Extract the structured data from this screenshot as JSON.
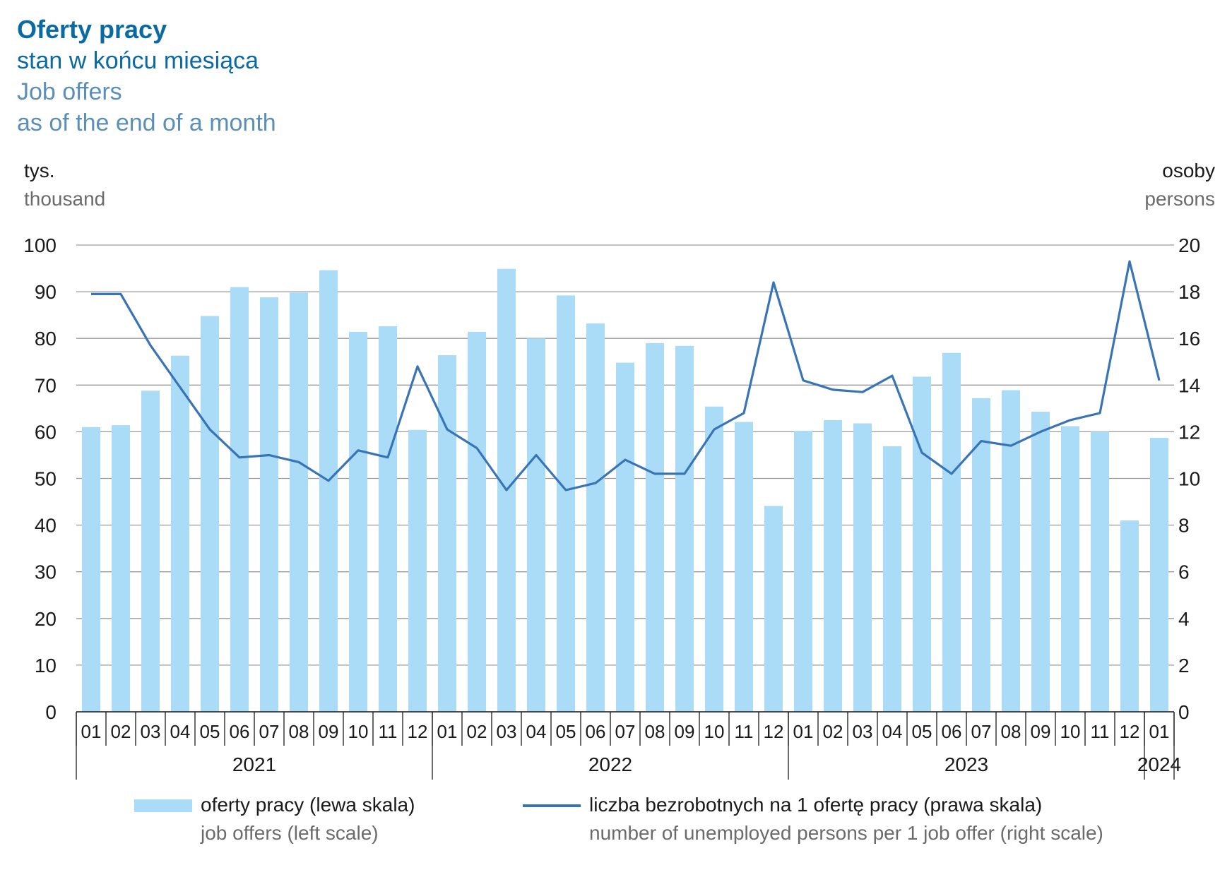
{
  "titles": {
    "main": "Oferty pracy",
    "sub": "stan w końcu miesiąca",
    "en1": "Job offers",
    "en2": "as of the end of a month"
  },
  "units": {
    "left_pl": "tys.",
    "left_en": "thousand",
    "right_pl": "osoby",
    "right_en": "persons"
  },
  "legend": {
    "bars_pl": "oferty pracy (lewa skala)",
    "bars_en": "job offers (left scale)",
    "line_pl": "liczba bezrobotnych na 1 ofertę pracy (prawa skala)",
    "line_en": "number of unemployed persons per 1 job offer (right scale)"
  },
  "chart_data": {
    "type": "bar",
    "categories": [
      "01",
      "02",
      "03",
      "04",
      "05",
      "06",
      "07",
      "08",
      "09",
      "10",
      "11",
      "12",
      "01",
      "02",
      "03",
      "04",
      "05",
      "06",
      "07",
      "08",
      "09",
      "10",
      "11",
      "12",
      "01",
      "02",
      "03",
      "04",
      "05",
      "06",
      "07",
      "08",
      "09",
      "10",
      "11",
      "12",
      "01"
    ],
    "years": [
      {
        "label": "2021",
        "start": 0,
        "end": 11
      },
      {
        "label": "2022",
        "start": 12,
        "end": 23
      },
      {
        "label": "2023",
        "start": 24,
        "end": 35
      },
      {
        "label": "2024",
        "start": 36,
        "end": 36
      }
    ],
    "series": [
      {
        "name": "oferty pracy (lewa skala)",
        "type": "bar",
        "axis": "left",
        "color": "#aadcf8",
        "values": [
          61.0,
          61.4,
          68.8,
          76.3,
          84.8,
          91.0,
          88.8,
          89.8,
          94.6,
          81.4,
          82.6,
          60.4,
          76.4,
          81.4,
          94.9,
          80.0,
          89.2,
          83.2,
          74.8,
          79.0,
          78.4,
          65.4,
          62.1,
          44.1,
          60.2,
          62.5,
          61.8,
          56.9,
          71.8,
          76.9,
          67.2,
          68.9,
          64.3,
          61.2,
          60.0,
          41.0,
          58.7
        ]
      },
      {
        "name": "liczba bezrobotnych na 1 ofertę pracy (prawa skala)",
        "type": "line",
        "axis": "right",
        "color": "#3874b6",
        "values": [
          17.9,
          17.9,
          15.7,
          13.9,
          12.1,
          10.9,
          11.0,
          10.7,
          9.9,
          11.2,
          10.9,
          14.8,
          12.1,
          11.3,
          9.5,
          11.0,
          9.5,
          9.8,
          10.8,
          10.2,
          10.2,
          12.1,
          12.8,
          18.4,
          14.2,
          13.8,
          13.7,
          14.4,
          11.1,
          10.2,
          11.6,
          11.4,
          12.0,
          12.5,
          12.8,
          19.3,
          14.2
        ]
      }
    ],
    "y_left": {
      "min": 0,
      "max": 100,
      "ticks": [
        0,
        10,
        20,
        30,
        40,
        50,
        60,
        70,
        80,
        90,
        100
      ]
    },
    "y_right": {
      "min": 0,
      "max": 20,
      "ticks": [
        0,
        2,
        4,
        6,
        8,
        10,
        12,
        14,
        16,
        18,
        20
      ]
    },
    "grid": true,
    "legend_position": "bottom"
  }
}
